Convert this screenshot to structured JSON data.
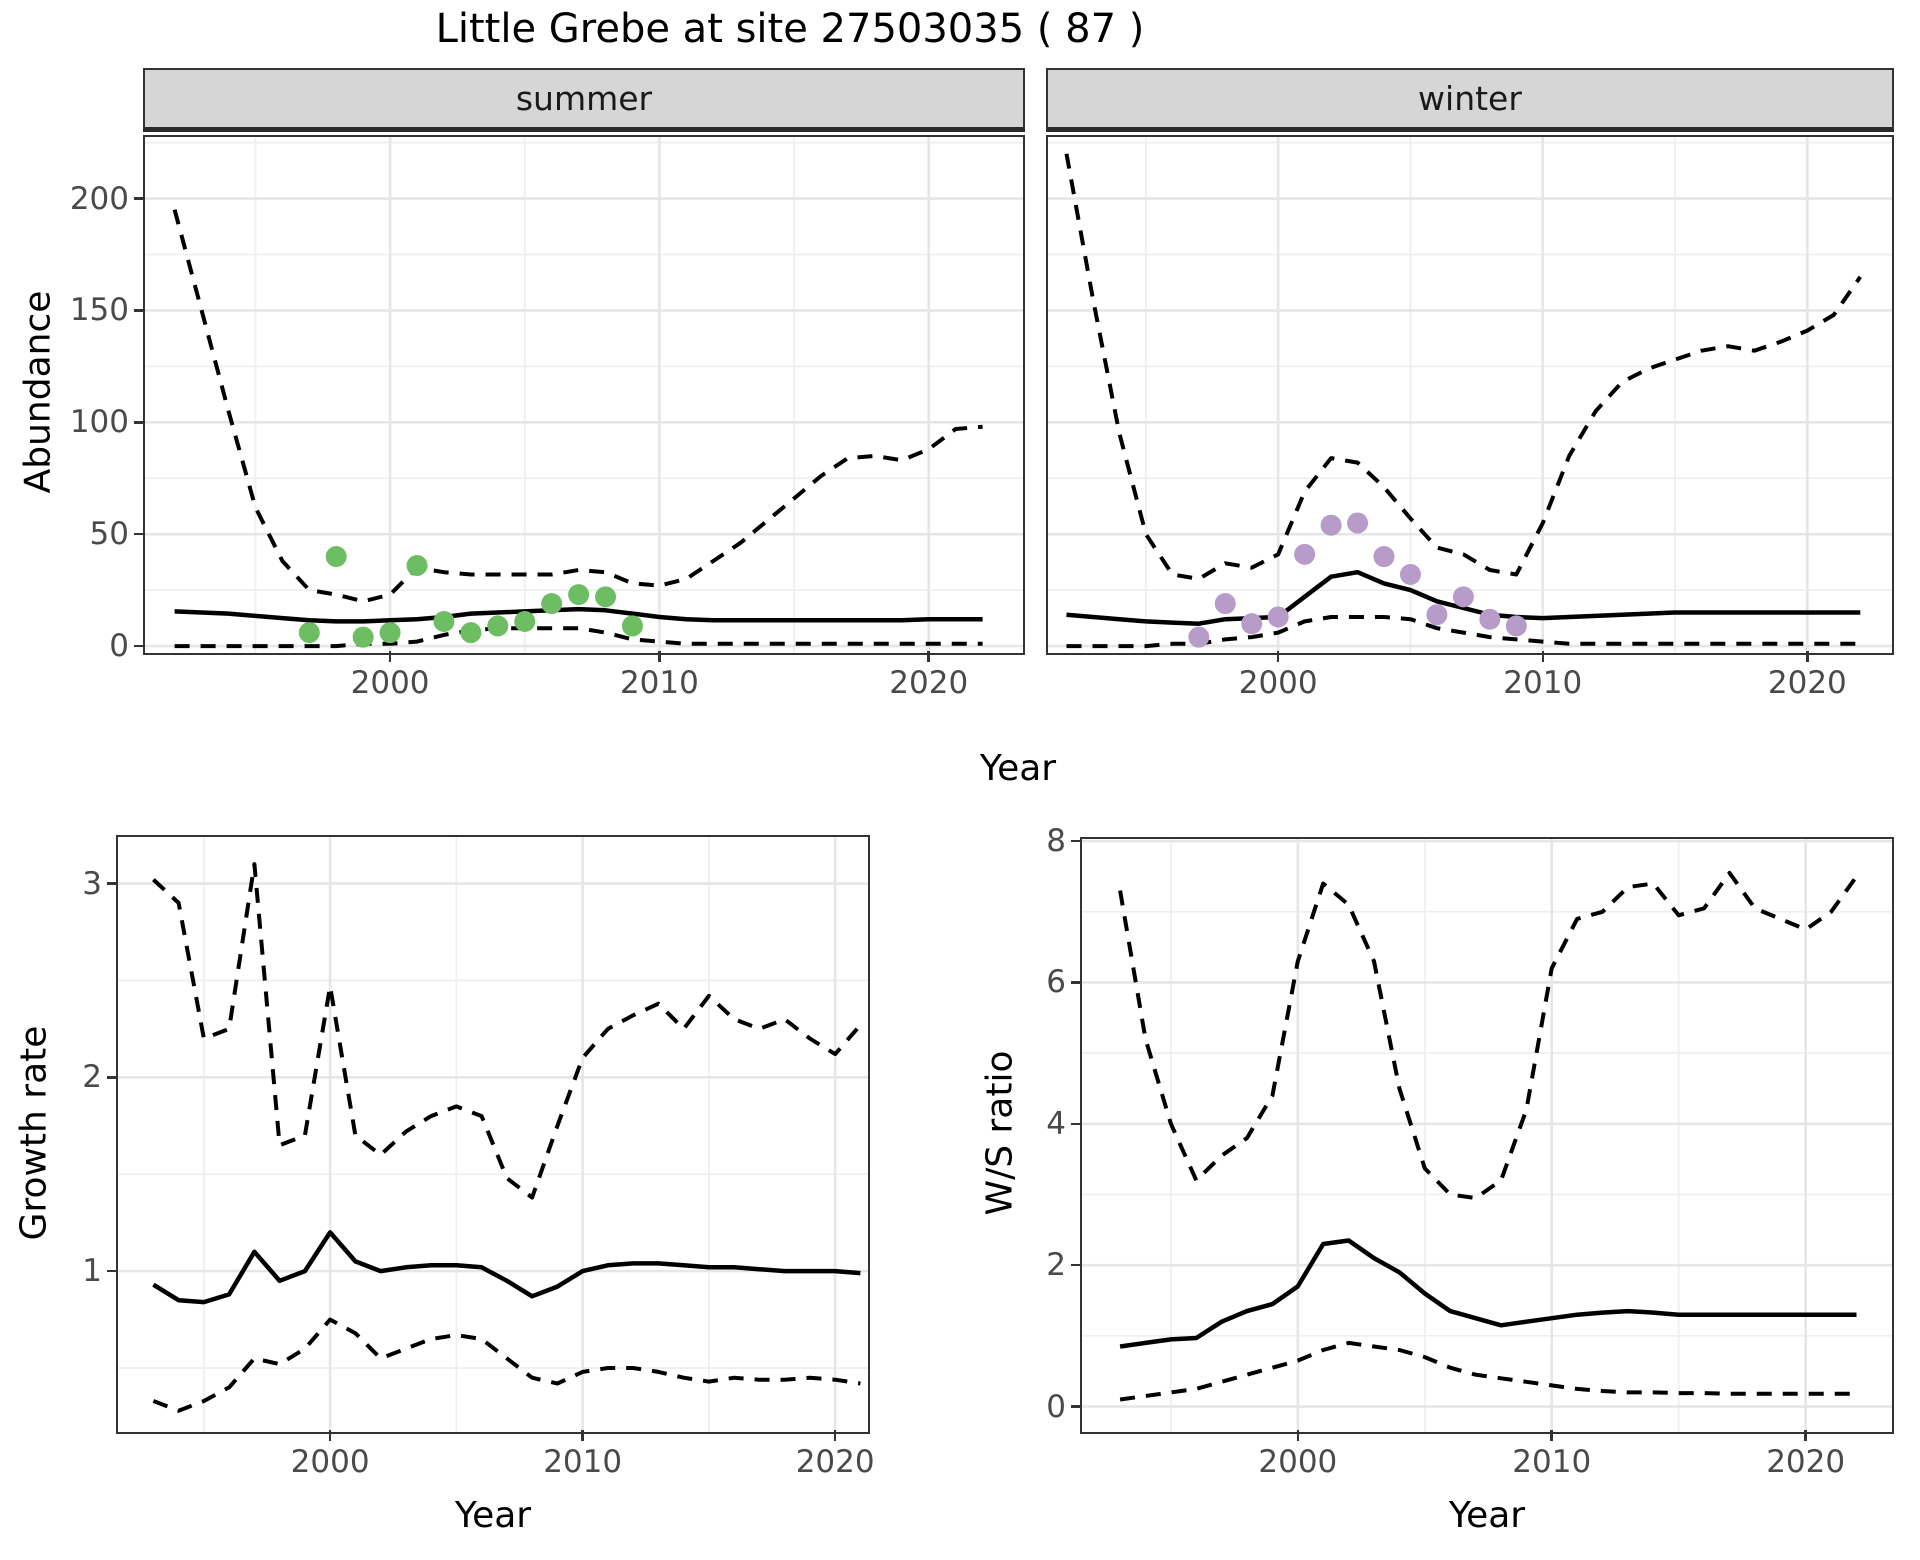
{
  "title": "Little Grebe at site 27503035 ( 87 )",
  "facets": {
    "summer": "summer",
    "winter": "winter"
  },
  "axes": {
    "abundance_label": "Abundance",
    "year_label_top": "Year",
    "growth_label": "Growth rate",
    "ws_label": "W/S ratio",
    "year_label_bottom_left": "Year",
    "year_label_bottom_right": "Year"
  },
  "colors": {
    "summer_points": "#6dbe63",
    "winter_points": "#b79bc9",
    "line": "#000000",
    "strip_bg": "#d6d6d6",
    "grid_major": "#e6e6e6",
    "grid_minor": "#efefef"
  },
  "chart_data": [
    {
      "id": "abundance-summer",
      "type": "line",
      "facet": "summer",
      "xlabel": "Year",
      "ylabel": "Abundance",
      "xlim": [
        1990.9,
        2023.5
      ],
      "ylim": [
        -3.1,
        227.5
      ],
      "xticks_major": [
        2000,
        2010,
        2020
      ],
      "xticks_minor": [
        1995,
        2005,
        2015
      ],
      "yticks_major": [
        0,
        50,
        100,
        150,
        200
      ],
      "yticks_minor": [
        25,
        75,
        125,
        175,
        225
      ],
      "show_y_labels": true,
      "series": [
        {
          "name": "upper-ci",
          "style": "dashed",
          "x": [
            1992,
            1993,
            1994,
            1995,
            1996,
            1997,
            1998,
            1999,
            2000,
            2001,
            2002,
            2003,
            2004,
            2005,
            2006,
            2007,
            2008,
            2009,
            2010,
            2011,
            2012,
            2013,
            2014,
            2015,
            2016,
            2017,
            2018,
            2019,
            2020,
            2021,
            2022
          ],
          "y": [
            195,
            150,
            105,
            62,
            38,
            25,
            23,
            20,
            23,
            35,
            33,
            32,
            32,
            32,
            32,
            34,
            33,
            28,
            27,
            30,
            38,
            46,
            56,
            66,
            76,
            84,
            85,
            83,
            88,
            97,
            98
          ]
        },
        {
          "name": "lower-ci",
          "style": "dashed",
          "x": [
            1992,
            1993,
            1994,
            1995,
            1996,
            1997,
            1998,
            1999,
            2000,
            2001,
            2002,
            2003,
            2004,
            2005,
            2006,
            2007,
            2008,
            2009,
            2010,
            2011,
            2012,
            2013,
            2014,
            2015,
            2016,
            2017,
            2018,
            2019,
            2020,
            2021,
            2022
          ],
          "y": [
            0,
            0,
            0,
            0,
            0,
            0,
            0,
            1,
            1,
            2,
            5,
            7,
            8,
            8,
            8,
            8,
            6,
            3,
            2,
            1,
            1,
            1,
            1,
            1,
            1,
            1,
            1,
            1,
            1,
            1,
            1
          ]
        },
        {
          "name": "fit",
          "style": "solid",
          "x": [
            1992,
            1993,
            1994,
            1995,
            1996,
            1997,
            1998,
            1999,
            2000,
            2001,
            2002,
            2003,
            2004,
            2005,
            2006,
            2007,
            2008,
            2009,
            2010,
            2011,
            2012,
            2013,
            2014,
            2015,
            2016,
            2017,
            2018,
            2019,
            2020,
            2021,
            2022
          ],
          "y": [
            15.5,
            15,
            14.5,
            13.5,
            12.5,
            11.5,
            11,
            11,
            11.5,
            12,
            13,
            14.5,
            15,
            15.5,
            16,
            16.5,
            16,
            14.5,
            13,
            12,
            11.5,
            11.5,
            11.5,
            11.5,
            11.5,
            11.5,
            11.5,
            11.5,
            12,
            12,
            12
          ]
        },
        {
          "name": "observations",
          "style": "points",
          "color": "#6dbe63",
          "x": [
            1997,
            1998,
            1999,
            2000,
            2001,
            2002,
            2003,
            2004,
            2005,
            2006,
            2007,
            2008,
            2009
          ],
          "y": [
            6,
            40,
            4,
            6,
            36,
            11,
            6,
            9,
            11,
            19,
            23,
            22,
            9
          ]
        }
      ]
    },
    {
      "id": "abundance-winter",
      "type": "line",
      "facet": "winter",
      "xlabel": "Year",
      "ylabel": "Abundance",
      "xlim": [
        1991.3,
        2023.2
      ],
      "ylim": [
        -3.1,
        227.5
      ],
      "xticks_major": [
        2000,
        2010,
        2020
      ],
      "xticks_minor": [
        1995,
        2005,
        2015
      ],
      "yticks_major": [
        0,
        50,
        100,
        150,
        200
      ],
      "yticks_minor": [
        25,
        75,
        125,
        175,
        225
      ],
      "show_y_labels": false,
      "series": [
        {
          "name": "upper-ci",
          "style": "dashed",
          "x": [
            1992,
            1993,
            1994,
            1995,
            1996,
            1997,
            1998,
            1999,
            2000,
            2001,
            2002,
            2003,
            2004,
            2005,
            2006,
            2007,
            2008,
            2009,
            2010,
            2011,
            2012,
            2013,
            2014,
            2015,
            2016,
            2017,
            2018,
            2019,
            2020,
            2021,
            2022
          ],
          "y": [
            220,
            155,
            95,
            50,
            32,
            30,
            37,
            35,
            41,
            69,
            84,
            82,
            71,
            57,
            44,
            41,
            34,
            32,
            55,
            85,
            105,
            118,
            124,
            128,
            132,
            134,
            132,
            136,
            141,
            148,
            165
          ]
        },
        {
          "name": "lower-ci",
          "style": "dashed",
          "x": [
            1992,
            1993,
            1994,
            1995,
            1996,
            1997,
            1998,
            1999,
            2000,
            2001,
            2002,
            2003,
            2004,
            2005,
            2006,
            2007,
            2008,
            2009,
            2010,
            2011,
            2012,
            2013,
            2014,
            2015,
            2016,
            2017,
            2018,
            2019,
            2020,
            2021,
            2022
          ],
          "y": [
            0,
            0,
            0,
            0,
            1,
            1,
            3,
            4,
            6,
            11,
            13,
            13,
            13,
            12,
            8,
            6,
            4,
            3,
            2,
            1,
            1,
            1,
            1,
            1,
            1,
            1,
            1,
            1,
            1,
            1,
            1
          ]
        },
        {
          "name": "fit",
          "style": "solid",
          "x": [
            1992,
            1993,
            1994,
            1995,
            1996,
            1997,
            1998,
            1999,
            2000,
            2001,
            2002,
            2003,
            2004,
            2005,
            2006,
            2007,
            2008,
            2009,
            2010,
            2011,
            2012,
            2013,
            2014,
            2015,
            2016,
            2017,
            2018,
            2019,
            2020,
            2021,
            2022
          ],
          "y": [
            14,
            13,
            12,
            11,
            10.5,
            10,
            12,
            12.5,
            13,
            22,
            31,
            33,
            28,
            25,
            20,
            17,
            14,
            13,
            12.5,
            13,
            13.5,
            14,
            14.5,
            15,
            15,
            15,
            15,
            15,
            15,
            15,
            15
          ]
        },
        {
          "name": "observations",
          "style": "points",
          "color": "#b79bc9",
          "x": [
            1997,
            1998,
            1999,
            2000,
            2001,
            2002,
            2003,
            2004,
            2005,
            2006,
            2007,
            2008,
            2009
          ],
          "y": [
            4,
            19,
            10,
            13,
            41,
            54,
            55,
            40,
            32,
            14,
            22,
            12,
            9
          ]
        }
      ]
    },
    {
      "id": "growth-rate",
      "type": "line",
      "facet": null,
      "xlabel": "Year",
      "ylabel": "Growth rate",
      "xlim": [
        1991.6,
        2021.3
      ],
      "ylim": [
        0.17,
        3.24
      ],
      "xticks_major": [
        2000,
        2010,
        2020
      ],
      "xticks_minor": [
        1995,
        2005,
        2015
      ],
      "yticks_major": [
        1,
        2,
        3
      ],
      "yticks_minor": [
        0.5,
        1.5,
        2.5
      ],
      "show_y_labels": true,
      "series": [
        {
          "name": "upper-ci",
          "style": "dashed",
          "x": [
            1993,
            1994,
            1995,
            1996,
            1997,
            1998,
            1999,
            2000,
            2001,
            2002,
            2003,
            2004,
            2005,
            2006,
            2007,
            2008,
            2009,
            2010,
            2011,
            2012,
            2013,
            2014,
            2015,
            2016,
            2017,
            2018,
            2019,
            2020,
            2021
          ],
          "y": [
            3.02,
            2.9,
            2.2,
            2.25,
            3.1,
            1.65,
            1.7,
            2.47,
            1.7,
            1.6,
            1.72,
            1.8,
            1.85,
            1.8,
            1.48,
            1.38,
            1.75,
            2.1,
            2.25,
            2.32,
            2.38,
            2.25,
            2.42,
            2.3,
            2.25,
            2.3,
            2.2,
            2.12,
            2.27
          ]
        },
        {
          "name": "lower-ci",
          "style": "dashed",
          "x": [
            1993,
            1994,
            1995,
            1996,
            1997,
            1998,
            1999,
            2000,
            2001,
            2002,
            2003,
            2004,
            2005,
            2006,
            2007,
            2008,
            2009,
            2010,
            2011,
            2012,
            2013,
            2014,
            2015,
            2016,
            2017,
            2018,
            2019,
            2020,
            2021
          ],
          "y": [
            0.33,
            0.28,
            0.33,
            0.4,
            0.55,
            0.52,
            0.6,
            0.75,
            0.68,
            0.55,
            0.6,
            0.65,
            0.67,
            0.65,
            0.55,
            0.45,
            0.42,
            0.48,
            0.5,
            0.5,
            0.48,
            0.45,
            0.43,
            0.45,
            0.44,
            0.44,
            0.45,
            0.44,
            0.42
          ]
        },
        {
          "name": "fit",
          "style": "solid",
          "x": [
            1993,
            1994,
            1995,
            1996,
            1997,
            1998,
            1999,
            2000,
            2001,
            2002,
            2003,
            2004,
            2005,
            2006,
            2007,
            2008,
            2009,
            2010,
            2011,
            2012,
            2013,
            2014,
            2015,
            2016,
            2017,
            2018,
            2019,
            2020,
            2021
          ],
          "y": [
            0.93,
            0.85,
            0.84,
            0.88,
            1.1,
            0.95,
            1.0,
            1.2,
            1.05,
            1.0,
            1.02,
            1.03,
            1.03,
            1.02,
            0.95,
            0.87,
            0.92,
            1.0,
            1.03,
            1.04,
            1.04,
            1.03,
            1.02,
            1.02,
            1.01,
            1.0,
            1.0,
            1.0,
            0.99
          ]
        }
      ]
    },
    {
      "id": "ws-ratio",
      "type": "line",
      "facet": null,
      "xlabel": "Year",
      "ylabel": "W/S ratio",
      "xlim": [
        1991.5,
        2023.4
      ],
      "ylim": [
        -0.36,
        8.03
      ],
      "xticks_major": [
        2000,
        2010,
        2020
      ],
      "xticks_minor": [
        1995,
        2005,
        2015
      ],
      "yticks_major": [
        0,
        2,
        4,
        6,
        8
      ],
      "yticks_minor": [
        1,
        3,
        5,
        7
      ],
      "show_y_labels": true,
      "series": [
        {
          "name": "upper-ci",
          "style": "dashed",
          "x": [
            1993,
            1994,
            1995,
            1996,
            1997,
            1998,
            1999,
            2000,
            2001,
            2002,
            2003,
            2004,
            2005,
            2006,
            2007,
            2008,
            2009,
            2010,
            2011,
            2012,
            2013,
            2014,
            2015,
            2016,
            2017,
            2018,
            2019,
            2020,
            2021,
            2022
          ],
          "y": [
            7.3,
            5.2,
            4.0,
            3.2,
            3.55,
            3.8,
            4.4,
            6.3,
            7.4,
            7.1,
            6.3,
            4.5,
            3.37,
            3.0,
            2.95,
            3.2,
            4.2,
            6.2,
            6.9,
            7.0,
            7.35,
            7.4,
            6.95,
            7.05,
            7.55,
            7.05,
            6.9,
            6.75,
            7.0,
            7.5
          ]
        },
        {
          "name": "lower-ci",
          "style": "dashed",
          "x": [
            1993,
            1994,
            1995,
            1996,
            1997,
            1998,
            1999,
            2000,
            2001,
            2002,
            2003,
            2004,
            2005,
            2006,
            2007,
            2008,
            2009,
            2010,
            2011,
            2012,
            2013,
            2014,
            2015,
            2016,
            2017,
            2018,
            2019,
            2020,
            2021,
            2022
          ],
          "y": [
            0.1,
            0.15,
            0.2,
            0.25,
            0.35,
            0.45,
            0.55,
            0.65,
            0.8,
            0.9,
            0.85,
            0.8,
            0.7,
            0.55,
            0.45,
            0.4,
            0.35,
            0.3,
            0.25,
            0.22,
            0.2,
            0.2,
            0.19,
            0.19,
            0.18,
            0.18,
            0.18,
            0.18,
            0.18,
            0.18
          ]
        },
        {
          "name": "fit",
          "style": "solid",
          "x": [
            1993,
            1994,
            1995,
            1996,
            1997,
            1998,
            1999,
            2000,
            2001,
            2002,
            2003,
            2004,
            2005,
            2006,
            2007,
            2008,
            2009,
            2010,
            2011,
            2012,
            2013,
            2014,
            2015,
            2016,
            2017,
            2018,
            2019,
            2020,
            2021,
            2022
          ],
          "y": [
            0.85,
            0.9,
            0.95,
            0.97,
            1.2,
            1.35,
            1.45,
            1.7,
            2.3,
            2.35,
            2.1,
            1.9,
            1.6,
            1.35,
            1.25,
            1.15,
            1.2,
            1.25,
            1.3,
            1.33,
            1.35,
            1.33,
            1.3,
            1.3,
            1.3,
            1.3,
            1.3,
            1.3,
            1.3,
            1.3
          ]
        }
      ]
    }
  ]
}
